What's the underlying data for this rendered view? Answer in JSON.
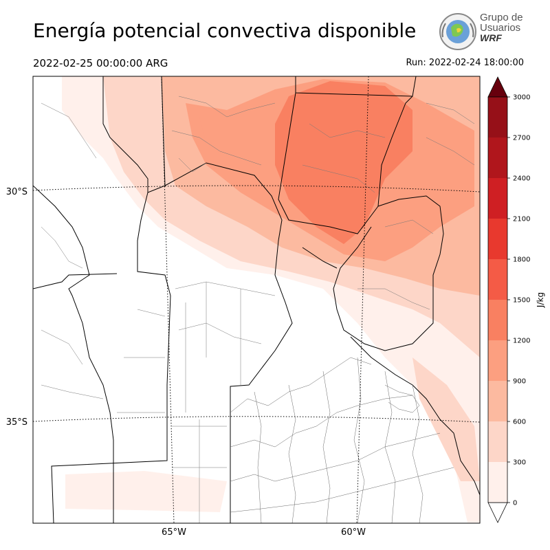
{
  "header": {
    "title": "Energía potencial convectiva disponible",
    "valid_time": "2022-02-25 00:00:00 ARG",
    "run_time": "Run: 2022-02-24 18:00:00"
  },
  "logo": {
    "line1": "Grupo de",
    "line2": "Usuarios",
    "line3": "WRF"
  },
  "map": {
    "lat_labels": [
      "30°S",
      "35°S"
    ],
    "lon_labels": [
      "65°W",
      "60°W"
    ]
  },
  "colorbar": {
    "unit": "J/kg",
    "ticks": [
      "0",
      "300",
      "600",
      "900",
      "1200",
      "1500",
      "1800",
      "2100",
      "2400",
      "2700",
      "3000"
    ],
    "colors": [
      "#fff0eb",
      "#fdd6c8",
      "#fcbaa0",
      "#fc9f80",
      "#f98061",
      "#f45b46",
      "#e8392e",
      "#cf1f23",
      "#b0161c",
      "#961018",
      "#7c0a12"
    ],
    "over_color": "#67000d"
  }
}
